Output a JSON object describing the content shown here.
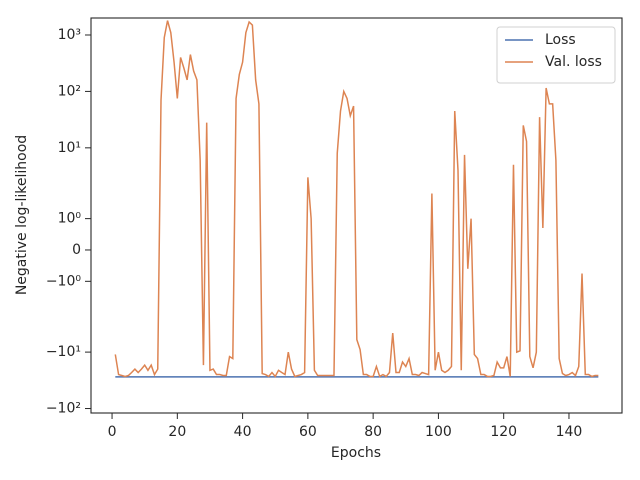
{
  "chart_data": {
    "type": "line",
    "xlabel": "Epochs",
    "ylabel": "Negative log-likelihood",
    "yscale": "symlog",
    "xlim": [
      -6.45,
      156.25
    ],
    "ylim": [
      -120,
      2000
    ],
    "xticks": [
      0,
      20,
      40,
      60,
      80,
      100,
      120,
      140
    ],
    "yticks": [
      {
        "value": -100,
        "label": "−10²"
      },
      {
        "value": -10,
        "label": "−10¹"
      },
      {
        "value": -1,
        "label": "−10⁰"
      },
      0,
      {
        "value": 1,
        "label": "10⁰"
      },
      {
        "value": 10,
        "label": "10¹"
      },
      {
        "value": 100,
        "label": "10²"
      },
      {
        "value": 1000,
        "label": "10³"
      }
    ],
    "legend": "upper right",
    "x": [
      1,
      2,
      3,
      4,
      5,
      6,
      7,
      8,
      9,
      10,
      11,
      12,
      13,
      14,
      15,
      16,
      17,
      18,
      19,
      20,
      21,
      22,
      23,
      24,
      25,
      26,
      27,
      28,
      29,
      30,
      31,
      32,
      33,
      34,
      35,
      36,
      37,
      38,
      39,
      40,
      41,
      42,
      43,
      44,
      45,
      46,
      47,
      48,
      49,
      50,
      51,
      52,
      53,
      54,
      55,
      56,
      57,
      58,
      59,
      60,
      61,
      62,
      63,
      64,
      65,
      66,
      67,
      68,
      69,
      70,
      71,
      72,
      73,
      74,
      75,
      76,
      77,
      78,
      79,
      80,
      81,
      82,
      83,
      84,
      85,
      86,
      87,
      88,
      89,
      90,
      91,
      92,
      93,
      94,
      95,
      96,
      97,
      98,
      99,
      100,
      101,
      102,
      103,
      104,
      105,
      106,
      107,
      108,
      109,
      110,
      111,
      112,
      113,
      114,
      115,
      116,
      117,
      118,
      119,
      120,
      121,
      122,
      123,
      124,
      125,
      126,
      127,
      128,
      129,
      130,
      131,
      132,
      133,
      134,
      135,
      136,
      137,
      138,
      139,
      140,
      141,
      142,
      143,
      144,
      145,
      146,
      147,
      148,
      149
    ],
    "series": [
      {
        "name": "Loss",
        "color": "#4c72b0",
        "values": [
          -27.5,
          -27.5,
          -27.5,
          -27.5,
          -27.5,
          -27.5,
          -27.5,
          -27.5,
          -27.5,
          -27.5,
          -27.5,
          -27.5,
          -27.5,
          -27.5,
          -27.5,
          -27.5,
          -27.5,
          -27.5,
          -27.5,
          -27.5,
          -27.5,
          -27.5,
          -27.5,
          -27.5,
          -27.5,
          -27.5,
          -27.5,
          -27.5,
          -27.5,
          -27.5,
          -27.5,
          -27.5,
          -27.5,
          -27.5,
          -27.5,
          -27.5,
          -27.5,
          -27.5,
          -27.5,
          -27.5,
          -27.5,
          -27.5,
          -27.5,
          -27.5,
          -27.5,
          -27.5,
          -27.5,
          -27.5,
          -27.5,
          -27.5,
          -27.5,
          -27.5,
          -27.5,
          -27.5,
          -27.5,
          -27.5,
          -27.5,
          -27.5,
          -27.5,
          -27.5,
          -27.5,
          -27.5,
          -27.5,
          -27.5,
          -27.5,
          -27.5,
          -27.5,
          -27.5,
          -27.5,
          -27.5,
          -27.5,
          -27.5,
          -27.5,
          -27.5,
          -27.5,
          -27.5,
          -27.5,
          -27.5,
          -27.5,
          -27.5,
          -27.5,
          -27.5,
          -27.5,
          -27.5,
          -27.5,
          -27.5,
          -27.5,
          -27.5,
          -27.5,
          -27.5,
          -27.5,
          -27.5,
          -27.5,
          -27.5,
          -27.5,
          -27.5,
          -27.5,
          -27.5,
          -27.5,
          -27.5,
          -27.5,
          -27.5,
          -27.5,
          -27.5,
          -27.5,
          -27.5,
          -27.5,
          -27.5,
          -27.5,
          -27.5,
          -27.5,
          -27.5,
          -27.5,
          -27.5,
          -27.5,
          -27.5,
          -27.5,
          -27.5,
          -27.5,
          -27.5,
          -27.5,
          -27.5,
          -27.5,
          -27.5,
          -27.5,
          -27.5,
          -27.5,
          -27.5,
          -27.5,
          -27.5,
          -27.5,
          -27.5,
          -27.5,
          -27.5,
          -27.5,
          -27.5,
          -27.5,
          -27.5,
          -27.5,
          -27.5,
          -27.5,
          -27.5,
          -27.5,
          -27.5,
          -27.5,
          -27.5,
          -27.5,
          -27.5,
          -27.5
        ]
      },
      {
        "name": "Val. loss",
        "color": "#dd8452",
        "values": [
          -11,
          -25,
          -26,
          -27,
          -26,
          -23,
          -20,
          -23,
          -20,
          -17,
          -21,
          -17,
          -25,
          -20,
          70,
          900,
          1800,
          1100,
          330,
          75,
          400,
          260,
          160,
          450,
          230,
          160,
          6,
          -17,
          28,
          -21,
          -20,
          -25,
          -25,
          -26,
          -26,
          -12,
          -13,
          75,
          200,
          330,
          1100,
          1700,
          1500,
          160,
          60,
          -24,
          -25,
          -27,
          -23,
          -27,
          -21,
          -23,
          -25,
          -10,
          -20,
          -27,
          -26,
          -25,
          -23,
          3,
          1,
          -21,
          -26,
          -26,
          -26,
          -26,
          -26,
          -26,
          8,
          45,
          100,
          75,
          37,
          55,
          -6,
          -9,
          -25,
          -25,
          -27,
          -27,
          -18,
          -27,
          -25,
          -27,
          -23,
          -4.6,
          -23,
          -23,
          -15,
          -18,
          -13,
          -25,
          -25,
          -26,
          -23,
          -24,
          -25,
          1.8,
          -21,
          -10,
          -21,
          -23,
          -21,
          -18,
          45,
          4,
          -21,
          7.5,
          -0.6,
          1,
          -11,
          -13,
          -25,
          -25,
          -27,
          -27,
          -26,
          -15,
          -19,
          -19,
          -12,
          -27,
          5,
          -10,
          -9.5,
          25,
          13,
          -12,
          -19,
          -10,
          35,
          0.7,
          115,
          60,
          60,
          6,
          -13,
          -24,
          -26,
          -25,
          -23,
          -26,
          -18,
          -0.75,
          -25,
          -25,
          -27,
          -26,
          -26
        ]
      }
    ]
  }
}
